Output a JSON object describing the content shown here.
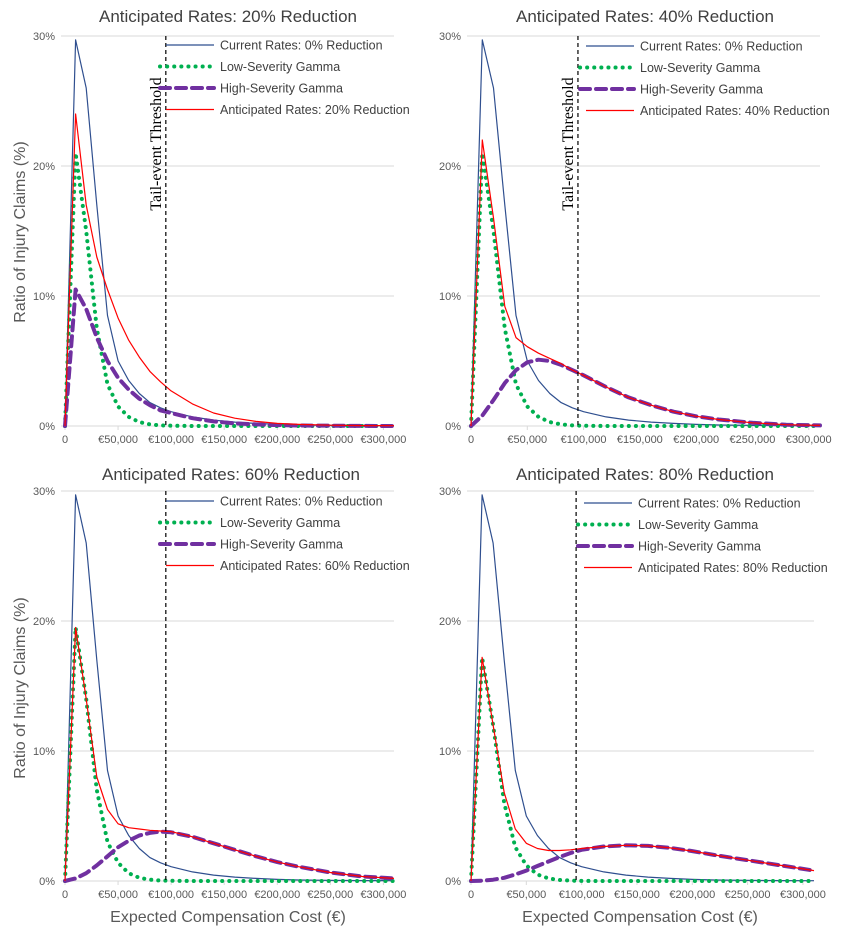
{
  "figure": {
    "ylabel": "Ratio of Injury Claims (%)",
    "xlabel": "Expected Compensation Cost (€)"
  },
  "colors": {
    "current": "#2f4f8f",
    "low": "#00b050",
    "high": "#7030a0",
    "anticipated": "#ff0000",
    "grid": "#d9d9d9",
    "threshold": "#000000"
  },
  "chart_data": [
    {
      "type": "line",
      "title": "Anticipated Rates: 20% Reduction",
      "xlabel": "",
      "ylabel": "Ratio of Injury Claims (%)",
      "xlim": [
        0,
        310000
      ],
      "ylim": [
        0,
        30
      ],
      "yticks": [
        "0%",
        "10%",
        "20%",
        "30%"
      ],
      "xticks": [
        "0",
        "€50,000",
        "€100,000",
        "€150,000",
        "€200,000",
        "€250,000",
        "€300,000"
      ],
      "grid": true,
      "legend_position": "top-right",
      "threshold": {
        "x": 95000,
        "label": "Tail-event Threshold",
        "show_label": true
      },
      "x": [
        0,
        10000,
        20000,
        30000,
        40000,
        50000,
        60000,
        70000,
        80000,
        90000,
        100000,
        120000,
        140000,
        160000,
        180000,
        200000,
        220000,
        250000,
        280000,
        310000
      ],
      "series": [
        {
          "name": "Current Rates: 0% Reduction",
          "key": "current",
          "values": [
            0,
            29.7,
            26.0,
            17.0,
            8.5,
            5.0,
            3.5,
            2.5,
            1.8,
            1.4,
            1.1,
            0.7,
            0.45,
            0.3,
            0.2,
            0.12,
            0.08,
            0.05,
            0.03,
            0.02
          ]
        },
        {
          "name": "Low-Severity Gamma",
          "key": "low",
          "values": [
            0,
            21.0,
            15.0,
            7.5,
            3.2,
            1.5,
            0.7,
            0.3,
            0.12,
            0.05,
            0.02,
            0,
            0,
            0,
            0,
            0,
            0,
            0,
            0,
            0
          ]
        },
        {
          "name": "High-Severity Gamma",
          "key": "high",
          "values": [
            0,
            10.5,
            9.0,
            6.8,
            5.0,
            3.7,
            2.8,
            2.1,
            1.6,
            1.2,
            1.0,
            0.6,
            0.35,
            0.2,
            0.12,
            0.07,
            0.04,
            0.02,
            0.01,
            0.0
          ]
        },
        {
          "name": "Anticipated Rates: 20% Reduction",
          "key": "anticipated",
          "values": [
            0,
            24.0,
            17.0,
            13.0,
            10.5,
            8.3,
            6.6,
            5.3,
            4.2,
            3.4,
            2.7,
            1.7,
            1.0,
            0.6,
            0.35,
            0.2,
            0.12,
            0.06,
            0.03,
            0.02
          ]
        }
      ]
    },
    {
      "type": "line",
      "title": "Anticipated Rates: 40% Reduction",
      "xlabel": "",
      "ylabel": "",
      "xlim": [
        0,
        310000
      ],
      "ylim": [
        0,
        30
      ],
      "yticks": [
        "0%",
        "10%",
        "20%",
        "30%"
      ],
      "xticks": [
        "0",
        "€50,000",
        "€100,000",
        "€150,000",
        "€200,000",
        "€250,000",
        "€300,000"
      ],
      "grid": true,
      "legend_position": "top-right",
      "threshold": {
        "x": 95000,
        "label": "Tail-event Threshold",
        "show_label": true
      },
      "x": [
        0,
        10000,
        20000,
        30000,
        40000,
        50000,
        60000,
        70000,
        80000,
        90000,
        100000,
        120000,
        140000,
        160000,
        180000,
        200000,
        220000,
        250000,
        280000,
        310000
      ],
      "series": [
        {
          "name": "Current Rates: 0% Reduction",
          "key": "current",
          "values": [
            0,
            29.7,
            26.0,
            17.0,
            8.5,
            5.0,
            3.5,
            2.5,
            1.8,
            1.4,
            1.1,
            0.7,
            0.45,
            0.3,
            0.2,
            0.12,
            0.08,
            0.05,
            0.03,
            0.02
          ]
        },
        {
          "name": "Low-Severity Gamma",
          "key": "low",
          "values": [
            0,
            21.0,
            15.0,
            7.5,
            3.2,
            1.5,
            0.7,
            0.3,
            0.12,
            0.05,
            0.02,
            0,
            0,
            0,
            0,
            0,
            0,
            0,
            0,
            0
          ]
        },
        {
          "name": "High-Severity Gamma",
          "key": "high",
          "values": [
            0,
            0.8,
            2.0,
            3.3,
            4.3,
            4.9,
            5.1,
            5.0,
            4.7,
            4.3,
            3.9,
            3.0,
            2.2,
            1.6,
            1.1,
            0.75,
            0.5,
            0.25,
            0.1,
            0.05
          ]
        },
        {
          "name": "Anticipated Rates: 40% Reduction",
          "key": "anticipated",
          "values": [
            0,
            22.0,
            16.0,
            9.2,
            6.8,
            6.1,
            5.6,
            5.2,
            4.8,
            4.3,
            3.9,
            3.0,
            2.2,
            1.6,
            1.1,
            0.75,
            0.5,
            0.25,
            0.1,
            0.05
          ]
        }
      ]
    },
    {
      "type": "line",
      "title": "Anticipated Rates: 60% Reduction",
      "xlabel": "Expected Compensation Cost (€)",
      "ylabel": "Ratio of Injury Claims (%)",
      "xlim": [
        0,
        310000
      ],
      "ylim": [
        0,
        30
      ],
      "yticks": [
        "0%",
        "10%",
        "20%",
        "30%"
      ],
      "xticks": [
        "0",
        "€50,000",
        "€100,000",
        "€150,000",
        "€200,000",
        "€250,000",
        "€300,000"
      ],
      "grid": true,
      "legend_position": "top-right",
      "threshold": {
        "x": 95000,
        "label": "Tail-event Threshold",
        "show_label": false
      },
      "x": [
        0,
        10000,
        20000,
        30000,
        40000,
        50000,
        60000,
        70000,
        80000,
        90000,
        100000,
        120000,
        140000,
        160000,
        180000,
        200000,
        220000,
        250000,
        280000,
        310000
      ],
      "series": [
        {
          "name": "Current Rates: 0% Reduction",
          "key": "current",
          "values": [
            0,
            29.7,
            26.0,
            17.0,
            8.5,
            5.0,
            3.5,
            2.5,
            1.8,
            1.4,
            1.1,
            0.7,
            0.45,
            0.3,
            0.2,
            0.12,
            0.08,
            0.05,
            0.03,
            0.02
          ]
        },
        {
          "name": "Low-Severity Gamma",
          "key": "low",
          "values": [
            0,
            19.5,
            14.0,
            7.0,
            3.0,
            1.4,
            0.6,
            0.25,
            0.1,
            0.04,
            0.02,
            0,
            0,
            0,
            0,
            0,
            0,
            0,
            0,
            0
          ]
        },
        {
          "name": "High-Severity Gamma",
          "key": "high",
          "values": [
            0,
            0.2,
            0.6,
            1.2,
            1.9,
            2.6,
            3.1,
            3.5,
            3.7,
            3.8,
            3.75,
            3.4,
            2.9,
            2.4,
            1.9,
            1.45,
            1.1,
            0.65,
            0.35,
            0.2
          ]
        },
        {
          "name": "Anticipated Rates: 60% Reduction",
          "key": "anticipated",
          "values": [
            0,
            19.5,
            14.0,
            8.0,
            5.5,
            4.4,
            4.1,
            4.0,
            3.9,
            3.85,
            3.8,
            3.4,
            2.9,
            2.4,
            1.9,
            1.45,
            1.1,
            0.65,
            0.35,
            0.2
          ]
        }
      ]
    },
    {
      "type": "line",
      "title": "Anticipated Rates: 80% Reduction",
      "xlabel": "Expected Compensation Cost (€)",
      "ylabel": "",
      "xlim": [
        0,
        310000
      ],
      "ylim": [
        0,
        30
      ],
      "yticks": [
        "0%",
        "10%",
        "20%",
        "30%"
      ],
      "xticks": [
        "0",
        "€50,000",
        "€100,000",
        "€150,000",
        "€200,000",
        "€250,000",
        "€300,000"
      ],
      "grid": true,
      "legend_position": "top-right",
      "threshold": {
        "x": 95000,
        "label": "Tail-event Threshold",
        "show_label": false
      },
      "x": [
        0,
        10000,
        20000,
        30000,
        40000,
        50000,
        60000,
        70000,
        80000,
        90000,
        100000,
        120000,
        140000,
        160000,
        180000,
        200000,
        220000,
        250000,
        280000,
        310000
      ],
      "series": [
        {
          "name": "Current Rates: 0% Reduction",
          "key": "current",
          "values": [
            0,
            29.7,
            26.0,
            17.0,
            8.5,
            5.0,
            3.5,
            2.5,
            1.8,
            1.4,
            1.1,
            0.7,
            0.45,
            0.3,
            0.2,
            0.12,
            0.08,
            0.05,
            0.03,
            0.02
          ]
        },
        {
          "name": "Low-Severity Gamma",
          "key": "low",
          "values": [
            0,
            17.2,
            12.0,
            6.0,
            2.6,
            1.2,
            0.5,
            0.2,
            0.08,
            0.03,
            0.01,
            0,
            0,
            0,
            0,
            0,
            0,
            0,
            0,
            0
          ]
        },
        {
          "name": "High-Severity Gamma",
          "key": "high",
          "values": [
            0,
            0.02,
            0.1,
            0.25,
            0.5,
            0.8,
            1.15,
            1.5,
            1.85,
            2.15,
            2.4,
            2.65,
            2.75,
            2.7,
            2.55,
            2.3,
            2.0,
            1.6,
            1.2,
            0.8
          ]
        },
        {
          "name": "Anticipated Rates: 80% Reduction",
          "key": "anticipated",
          "values": [
            0,
            17.2,
            12.0,
            6.8,
            4.0,
            2.9,
            2.5,
            2.35,
            2.35,
            2.4,
            2.5,
            2.65,
            2.75,
            2.7,
            2.55,
            2.3,
            2.0,
            1.6,
            1.2,
            0.8
          ]
        }
      ]
    }
  ]
}
